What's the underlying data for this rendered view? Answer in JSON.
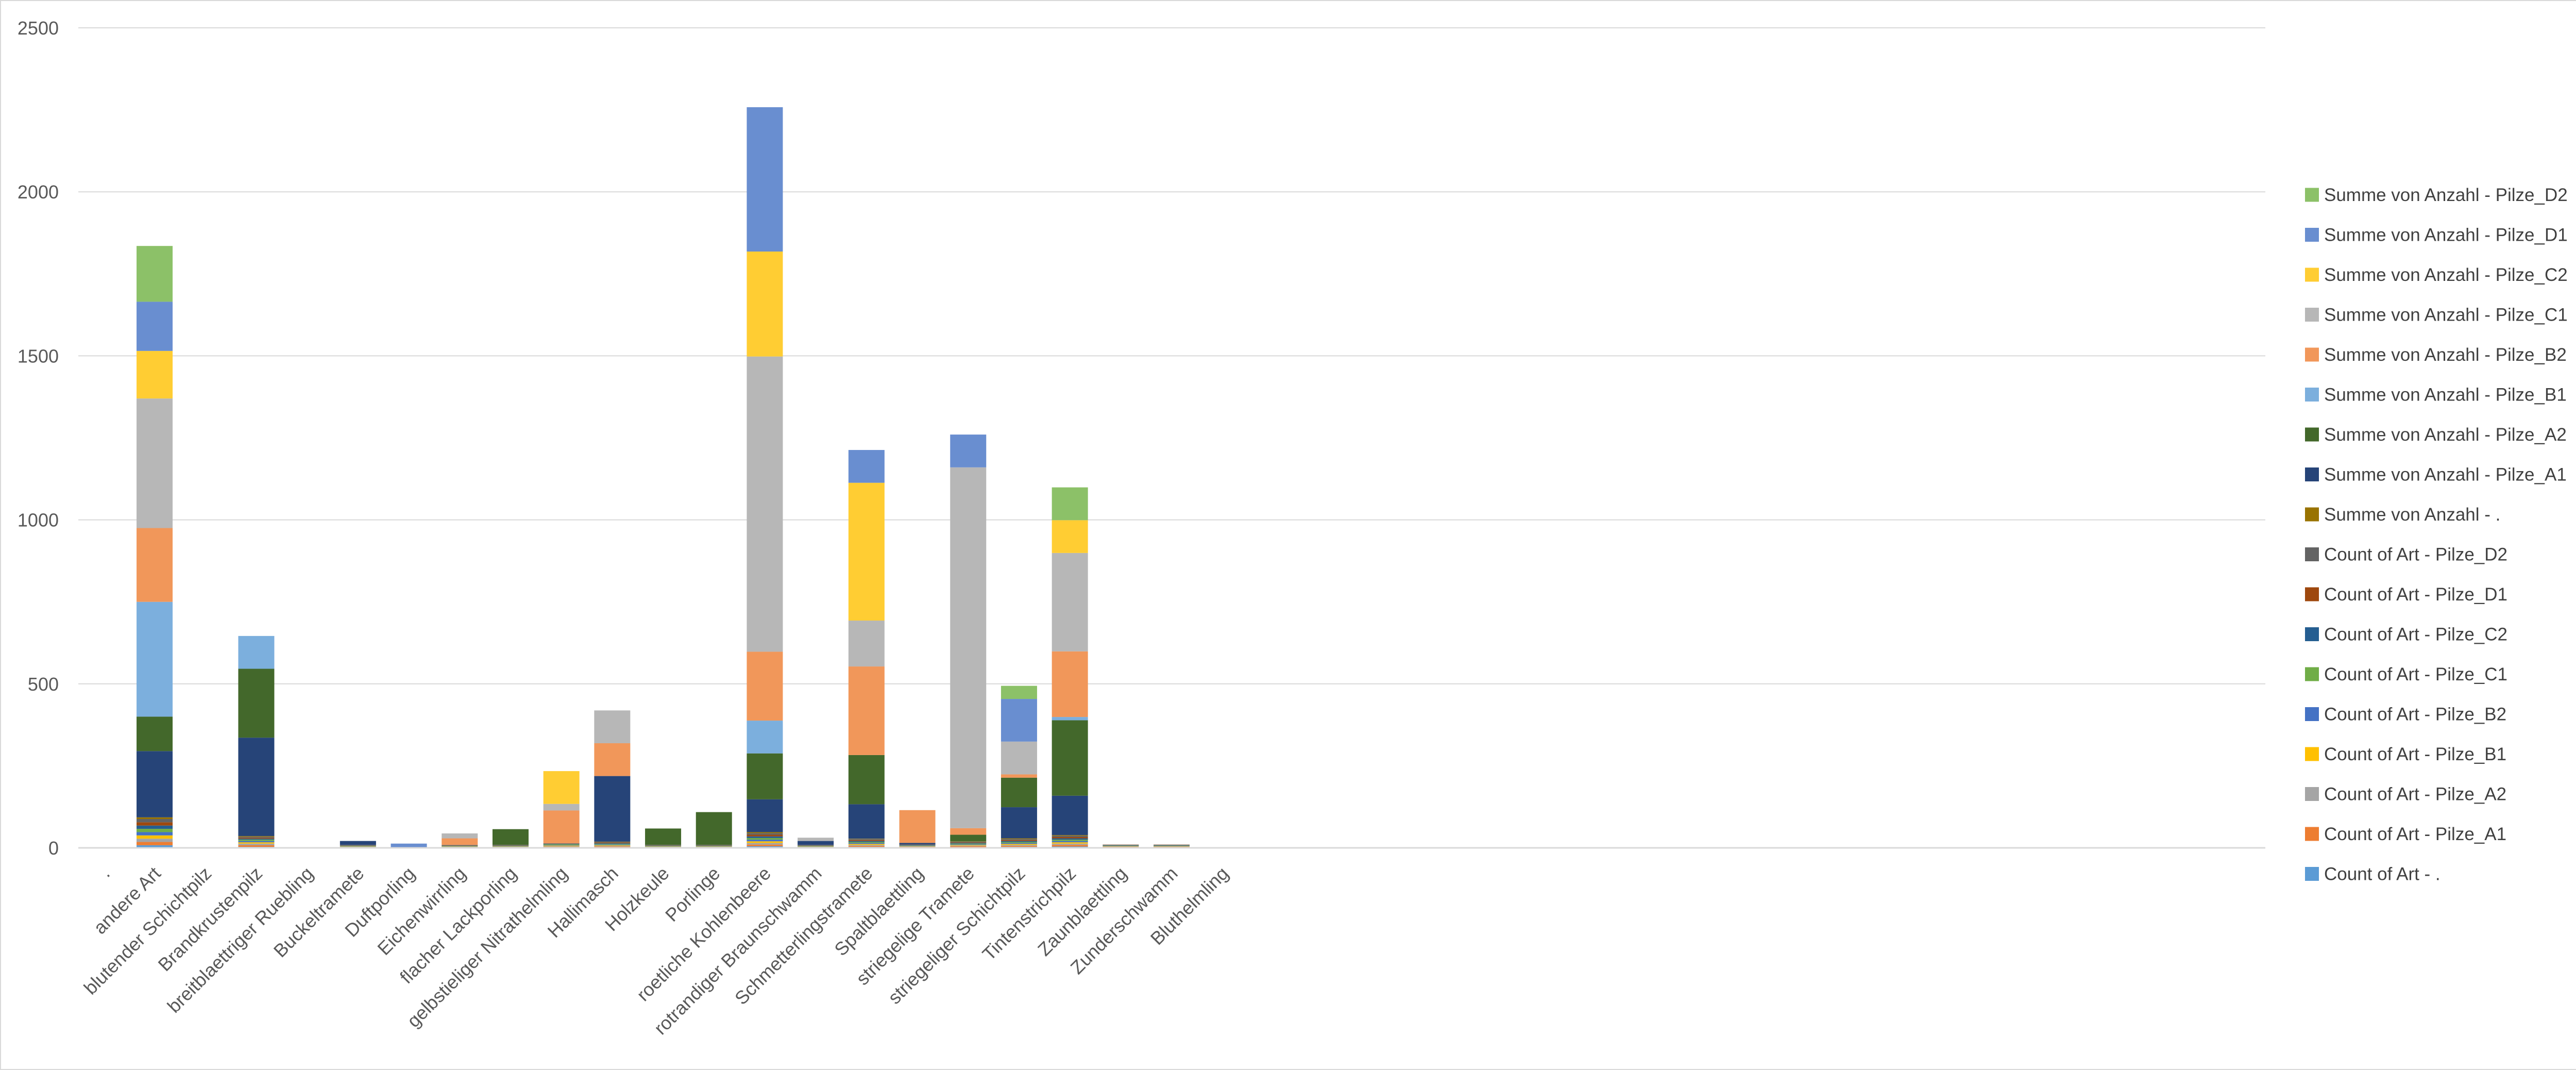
{
  "chart_data": {
    "type": "bar",
    "stacked": true,
    "title": "",
    "xlabel": "",
    "ylabel": "",
    "ylim": [
      0,
      2500
    ],
    "yticks": [
      0,
      500,
      1000,
      1500,
      2000,
      2500
    ],
    "grid": true,
    "legend_position": "right",
    "categories": [
      ".",
      "andere Art",
      "blutender Schichtpilz",
      "Brandkrustenpilz",
      "breitblaettriger Ruebling",
      "Buckeltramete",
      "Duftporling",
      "Eichenwirrling",
      "flacher Lackporling",
      "gelbstieliger Nitrathelmling",
      "Hallimasch",
      "Holzkeule",
      "Porlinge",
      "roetliche Kohlenbeere",
      "rotrandiger Braunschwamm",
      "Schmetterlingstramete",
      "Spaltblaettling",
      "striegelige Tramete",
      "striegeliger Schichtpilz",
      "Tintenstrichpilz",
      "Zaunblaettling",
      "Zunderschwamm",
      "Bluthelmling"
    ],
    "series": [
      {
        "name": "Count of Art - .",
        "color": "#5b9bd5",
        "values": [
          0,
          8,
          0,
          3,
          0,
          1,
          0,
          1,
          1,
          1,
          2,
          1,
          1,
          5,
          1,
          3,
          1,
          2,
          3,
          4,
          1,
          1,
          0
        ]
      },
      {
        "name": "Count of Art - Pilze_A1",
        "color": "#ed7d31",
        "values": [
          0,
          10,
          0,
          5,
          0,
          1,
          1,
          1,
          1,
          2,
          2,
          1,
          1,
          5,
          1,
          3,
          2,
          3,
          3,
          5,
          2,
          2,
          0
        ]
      },
      {
        "name": "Count of Art - Pilze_A2",
        "color": "#a5a5a5",
        "values": [
          0,
          10,
          0,
          5,
          0,
          1,
          1,
          1,
          1,
          2,
          2,
          1,
          1,
          5,
          1,
          3,
          1,
          2,
          3,
          4,
          1,
          1,
          0
        ]
      },
      {
        "name": "Count of Art - Pilze_B1",
        "color": "#ffc000",
        "values": [
          0,
          10,
          0,
          4,
          0,
          1,
          0,
          1,
          1,
          2,
          2,
          1,
          1,
          5,
          1,
          3,
          1,
          2,
          3,
          4,
          1,
          1,
          0
        ]
      },
      {
        "name": "Count of Art - Pilze_B2",
        "color": "#4472c4",
        "values": [
          0,
          10,
          0,
          4,
          0,
          1,
          1,
          1,
          1,
          2,
          2,
          1,
          1,
          5,
          1,
          3,
          1,
          2,
          3,
          4,
          1,
          1,
          0
        ]
      },
      {
        "name": "Count of Art - Pilze_C1",
        "color": "#70ad47",
        "values": [
          0,
          10,
          0,
          4,
          0,
          1,
          0,
          1,
          1,
          2,
          2,
          1,
          1,
          5,
          1,
          3,
          1,
          2,
          3,
          4,
          1,
          1,
          0
        ]
      },
      {
        "name": "Count of Art - Pilze_C2",
        "color": "#255e91",
        "values": [
          0,
          10,
          0,
          3,
          0,
          1,
          0,
          1,
          1,
          1,
          2,
          1,
          1,
          5,
          1,
          3,
          1,
          2,
          3,
          4,
          1,
          1,
          0
        ]
      },
      {
        "name": "Count of Art - Pilze_D1",
        "color": "#9e480e",
        "values": [
          0,
          10,
          0,
          3,
          0,
          1,
          0,
          1,
          1,
          1,
          2,
          1,
          1,
          5,
          1,
          3,
          1,
          2,
          3,
          4,
          1,
          1,
          0
        ]
      },
      {
        "name": "Count of Art - Pilze_D2",
        "color": "#636363",
        "values": [
          0,
          10,
          0,
          3,
          0,
          1,
          0,
          1,
          1,
          1,
          2,
          1,
          1,
          5,
          1,
          3,
          1,
          2,
          3,
          4,
          1,
          1,
          0
        ]
      },
      {
        "name": "Summe von Anzahl - .",
        "color": "#997300",
        "values": [
          0,
          5,
          0,
          2,
          0,
          0,
          0,
          0,
          0,
          0,
          1,
          0,
          0,
          3,
          0,
          1,
          0,
          1,
          2,
          2,
          0,
          0,
          0
        ]
      },
      {
        "name": "Summe von Anzahl - Pilze_A1",
        "color": "#264478",
        "values": [
          0,
          202,
          0,
          300,
          0,
          12,
          0,
          0,
          0,
          0,
          200,
          0,
          0,
          100,
          12,
          105,
          5,
          0,
          95,
          120,
          0,
          0,
          0
        ]
      },
      {
        "name": "Summe von Anzahl - Pilze_A2",
        "color": "#43682b",
        "values": [
          0,
          105,
          0,
          210,
          0,
          0,
          0,
          0,
          48,
          0,
          0,
          50,
          100,
          140,
          0,
          150,
          0,
          20,
          90,
          230,
          0,
          0,
          0
        ]
      },
      {
        "name": "Summe von Anzahl - Pilze_B1",
        "color": "#7cafdd",
        "values": [
          0,
          350,
          0,
          100,
          0,
          0,
          0,
          0,
          0,
          0,
          0,
          0,
          0,
          100,
          0,
          0,
          0,
          0,
          0,
          10,
          0,
          0,
          0
        ]
      },
      {
        "name": "Summe von Anzahl - Pilze_B2",
        "color": "#f1975a",
        "values": [
          0,
          225,
          0,
          0,
          0,
          0,
          0,
          20,
          0,
          100,
          100,
          0,
          0,
          210,
          0,
          270,
          100,
          20,
          10,
          200,
          0,
          0,
          0
        ]
      },
      {
        "name": "Summe von Anzahl - Pilze_C1",
        "color": "#b7b7b7",
        "values": [
          0,
          395,
          0,
          0,
          0,
          0,
          0,
          15,
          0,
          20,
          100,
          0,
          0,
          900,
          10,
          140,
          0,
          1100,
          100,
          300,
          0,
          0,
          0
        ]
      },
      {
        "name": "Summe von Anzahl - Pilze_C2",
        "color": "#ffcd33",
        "values": [
          0,
          145,
          0,
          0,
          0,
          0,
          0,
          0,
          0,
          100,
          0,
          0,
          0,
          320,
          0,
          420,
          0,
          0,
          0,
          100,
          0,
          0,
          0
        ]
      },
      {
        "name": "Summe von Anzahl - Pilze_D1",
        "color": "#698ed0",
        "values": [
          0,
          150,
          0,
          0,
          0,
          0,
          10,
          0,
          0,
          0,
          0,
          0,
          0,
          440,
          0,
          100,
          0,
          100,
          130,
          0,
          0,
          0,
          0
        ]
      },
      {
        "name": "Summe von Anzahl - Pilze_D2",
        "color": "#8cc168",
        "values": [
          0,
          170,
          0,
          0,
          0,
          0,
          0,
          0,
          0,
          0,
          0,
          0,
          0,
          0,
          0,
          0,
          0,
          0,
          40,
          100,
          0,
          0,
          0
        ]
      }
    ]
  }
}
